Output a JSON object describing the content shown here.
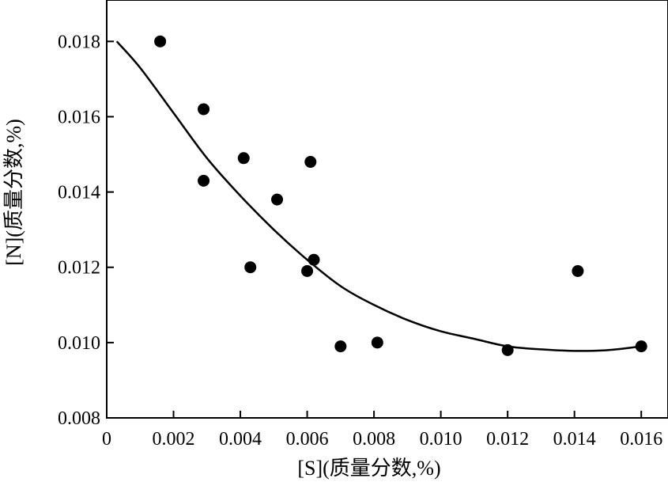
{
  "chart_data": {
    "type": "scatter",
    "xlabel": "[S](质量分数,%)",
    "ylabel": "[N](质量分数,%)",
    "xlim": [
      0,
      0.0168
    ],
    "ylim": [
      0.008,
      0.0191
    ],
    "x_ticks": [
      0,
      0.002,
      0.004,
      0.006,
      0.008,
      0.01,
      0.012,
      0.014,
      0.016
    ],
    "x_tick_labels": [
      "0",
      "0.002",
      "0.004",
      "0.006",
      "0.008",
      "0.010",
      "0.012",
      "0.014",
      "0.016"
    ],
    "y_ticks": [
      0.008,
      0.01,
      0.012,
      0.014,
      0.016,
      0.018
    ],
    "y_tick_labels": [
      "0.008",
      "0.010",
      "0.012",
      "0.014",
      "0.016",
      "0.018"
    ],
    "grid": false,
    "series": [
      {
        "kind": "points",
        "points": [
          {
            "x": 0.0016,
            "y": 0.018
          },
          {
            "x": 0.0029,
            "y": 0.0162
          },
          {
            "x": 0.0029,
            "y": 0.0143
          },
          {
            "x": 0.0041,
            "y": 0.0149
          },
          {
            "x": 0.0043,
            "y": 0.012
          },
          {
            "x": 0.0051,
            "y": 0.0138
          },
          {
            "x": 0.006,
            "y": 0.0119
          },
          {
            "x": 0.0061,
            "y": 0.0148
          },
          {
            "x": 0.0062,
            "y": 0.0122
          },
          {
            "x": 0.007,
            "y": 0.0099
          },
          {
            "x": 0.0081,
            "y": 0.01
          },
          {
            "x": 0.012,
            "y": 0.0098
          },
          {
            "x": 0.0141,
            "y": 0.0119
          },
          {
            "x": 0.016,
            "y": 0.0099
          }
        ]
      },
      {
        "kind": "fit-curve",
        "points": [
          {
            "x": 0.0003,
            "y": 0.018
          },
          {
            "x": 0.001,
            "y": 0.0173
          },
          {
            "x": 0.002,
            "y": 0.0161
          },
          {
            "x": 0.003,
            "y": 0.0149
          },
          {
            "x": 0.004,
            "y": 0.0139
          },
          {
            "x": 0.005,
            "y": 0.013
          },
          {
            "x": 0.006,
            "y": 0.0122
          },
          {
            "x": 0.007,
            "y": 0.0115
          },
          {
            "x": 0.008,
            "y": 0.011
          },
          {
            "x": 0.009,
            "y": 0.0106
          },
          {
            "x": 0.01,
            "y": 0.0103
          },
          {
            "x": 0.011,
            "y": 0.0101
          },
          {
            "x": 0.012,
            "y": 0.0099
          },
          {
            "x": 0.013,
            "y": 0.00982
          },
          {
            "x": 0.014,
            "y": 0.00978
          },
          {
            "x": 0.015,
            "y": 0.0098
          },
          {
            "x": 0.016,
            "y": 0.0099
          }
        ]
      }
    ]
  }
}
